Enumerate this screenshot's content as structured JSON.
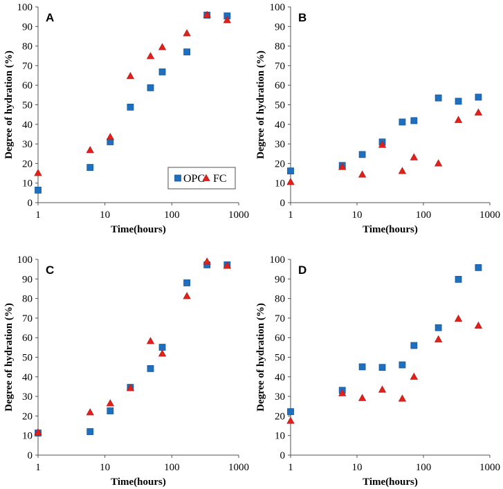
{
  "chart_data": [
    {
      "panel": "A",
      "type": "scatter",
      "xscale": "log",
      "xlabel": "Time(hours)",
      "ylabel": "Degree of hydration (%)",
      "xlim": [
        1,
        1000
      ],
      "ylim": [
        0,
        100
      ],
      "xticks": [
        1,
        10,
        100,
        1000
      ],
      "yticks": [
        0,
        10,
        20,
        30,
        40,
        50,
        60,
        70,
        80,
        90,
        100
      ],
      "grid": false,
      "legend": {
        "show": true,
        "position": "bottom-right"
      },
      "series": [
        {
          "name": "OPC",
          "marker": "square",
          "color": "#1f6fbf",
          "edge_color": "#17589a",
          "x": [
            1,
            6,
            12,
            24,
            48,
            72,
            168,
            336,
            672
          ],
          "y": [
            6.4,
            18.0,
            31.1,
            48.8,
            58.7,
            66.8,
            77.0,
            95.8,
            95.4
          ]
        },
        {
          "name": "FC",
          "marker": "triangle",
          "color": "#e3211c",
          "edge_color": "#b81a16",
          "x": [
            1,
            6,
            12,
            24,
            48,
            72,
            168,
            336,
            672
          ],
          "y": [
            15.2,
            26.9,
            33.6,
            64.7,
            74.9,
            79.5,
            86.6,
            96.0,
            93.3
          ]
        }
      ]
    },
    {
      "panel": "B",
      "type": "scatter",
      "xscale": "log",
      "xlabel": "Time(hours)",
      "ylabel": "Degree of hydration (%)",
      "xlim": [
        1,
        1000
      ],
      "ylim": [
        0,
        100
      ],
      "xticks": [
        1,
        10,
        100,
        1000
      ],
      "yticks": [
        0,
        10,
        20,
        30,
        40,
        50,
        60,
        70,
        80,
        90,
        100
      ],
      "grid": false,
      "legend": {
        "show": false
      },
      "series": [
        {
          "name": "OPC",
          "marker": "square",
          "color": "#1f6fbf",
          "edge_color": "#17589a",
          "x": [
            1,
            6,
            12,
            24,
            48,
            72,
            168,
            336,
            672
          ],
          "y": [
            16.2,
            19.0,
            24.6,
            31.0,
            41.2,
            41.9,
            53.5,
            51.8,
            53.9
          ]
        },
        {
          "name": "FC",
          "marker": "triangle",
          "color": "#e3211c",
          "edge_color": "#b81a16",
          "x": [
            1,
            6,
            12,
            24,
            48,
            72,
            168,
            336,
            672
          ],
          "y": [
            10.6,
            18.3,
            14.4,
            29.6,
            16.2,
            23.2,
            20.1,
            42.3,
            46.1
          ]
        }
      ]
    },
    {
      "panel": "C",
      "type": "scatter",
      "xscale": "log",
      "xlabel": "Time(hours)",
      "ylabel": "Degree of hydration (%)",
      "xlim": [
        1,
        1000
      ],
      "ylim": [
        0,
        100
      ],
      "xticks": [
        1,
        10,
        100,
        1000
      ],
      "yticks": [
        0,
        10,
        20,
        30,
        40,
        50,
        60,
        70,
        80,
        90,
        100
      ],
      "grid": false,
      "legend": {
        "show": false
      },
      "series": [
        {
          "name": "OPC",
          "marker": "square",
          "color": "#1f6fbf",
          "edge_color": "#17589a",
          "x": [
            1,
            6,
            12,
            24,
            48,
            72,
            168,
            336,
            672
          ],
          "y": [
            11.3,
            12.0,
            22.6,
            34.6,
            44.2,
            55.1,
            88.0,
            97.2,
            97.2
          ]
        },
        {
          "name": "FC",
          "marker": "triangle",
          "color": "#e3211c",
          "edge_color": "#b81a16",
          "x": [
            1,
            6,
            12,
            24,
            48,
            72,
            168,
            336,
            672
          ],
          "y": [
            11.7,
            21.9,
            26.5,
            34.3,
            58.3,
            51.9,
            81.3,
            98.9,
            96.8
          ]
        }
      ]
    },
    {
      "panel": "D",
      "type": "scatter",
      "xscale": "log",
      "xlabel": "Time(hours)",
      "ylabel": "Degree of hydration (%)",
      "xlim": [
        1,
        1000
      ],
      "ylim": [
        0,
        100
      ],
      "xticks": [
        1,
        10,
        100,
        1000
      ],
      "yticks": [
        0,
        10,
        20,
        30,
        40,
        50,
        60,
        70,
        80,
        90,
        100
      ],
      "grid": false,
      "legend": {
        "show": false
      },
      "series": [
        {
          "name": "OPC",
          "marker": "square",
          "color": "#1f6fbf",
          "edge_color": "#17589a",
          "x": [
            1,
            6,
            12,
            24,
            48,
            72,
            168,
            336,
            672
          ],
          "y": [
            22.2,
            33.1,
            45.1,
            44.8,
            46.1,
            56.0,
            65.1,
            89.8,
            95.8
          ]
        },
        {
          "name": "FC",
          "marker": "triangle",
          "color": "#e3211c",
          "edge_color": "#b81a16",
          "x": [
            1,
            6,
            12,
            24,
            48,
            72,
            168,
            336,
            672
          ],
          "y": [
            17.6,
            31.7,
            29.2,
            33.5,
            28.9,
            40.1,
            59.2,
            69.7,
            66.2
          ]
        }
      ]
    }
  ]
}
